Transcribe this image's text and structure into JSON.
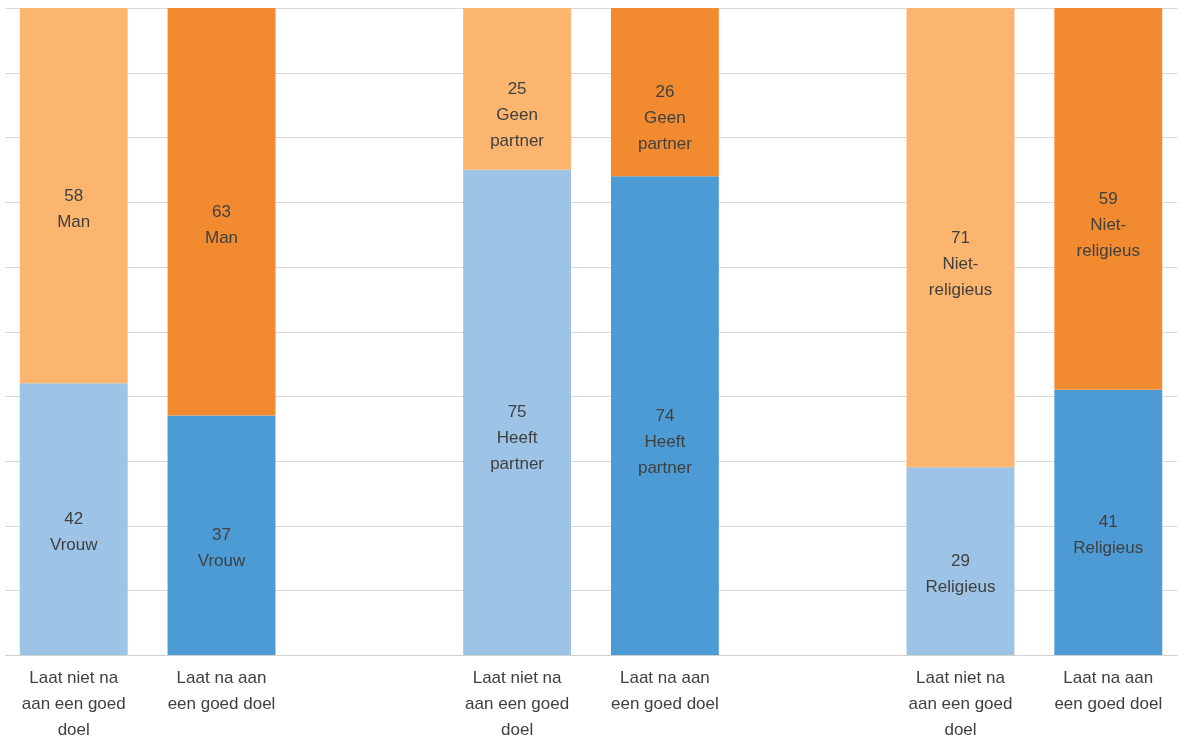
{
  "chart_data": {
    "type": "bar",
    "stacked": true,
    "categories": [
      "Laat niet na aan een goed doel",
      "Laat na aan een goed doel",
      null,
      "Laat niet na aan een goed doel",
      "Laat na aan een goed doel",
      null,
      "Laat niet na aan een goed doel",
      "Laat na aan een goed doel"
    ],
    "series": [
      {
        "colors": [
          "#9dc3e6",
          "#4c9bd5",
          null,
          "#9dc3e6",
          "#4c9bd5",
          null,
          "#9dc3e6",
          "#4c9bd5"
        ],
        "values": [
          42,
          37,
          null,
          75,
          74,
          null,
          29,
          41
        ],
        "value_labels": [
          "42\nVrouw",
          "37\nVrouw",
          null,
          "75\nHeeft\npartner",
          "74\nHeeft\npartner",
          null,
          "29\nReligieus",
          "41\nReligieus"
        ]
      },
      {
        "colors": [
          "#fbb56f",
          "#f28b2f",
          null,
          "#fbb56f",
          "#f28b2f",
          null,
          "#fbb56f",
          "#f28b2f"
        ],
        "values": [
          58,
          63,
          null,
          25,
          26,
          null,
          71,
          59
        ],
        "value_labels": [
          "58\nMan",
          "63\nMan",
          null,
          "25\nGeen\npartner",
          "26\nGeen\npartner",
          null,
          "71\nNiet-\nreligieus",
          "59\nNiet-\nreligieus"
        ]
      }
    ],
    "ylim": [
      0,
      100
    ],
    "yticks": [
      {
        "value": 0,
        "label": null
      },
      {
        "value": 10,
        "label": null
      },
      {
        "value": 20,
        "label": null
      },
      {
        "value": 30,
        "label": null
      },
      {
        "value": 40,
        "label": null
      },
      {
        "value": 50,
        "label": null
      },
      {
        "value": 60,
        "label": null
      },
      {
        "value": 70,
        "label": null
      },
      {
        "value": 80,
        "label": null
      },
      {
        "value": 90,
        "label": null
      },
      {
        "value": 100,
        "label": null
      }
    ],
    "tick_labels": "x",
    "grid": "y"
  }
}
